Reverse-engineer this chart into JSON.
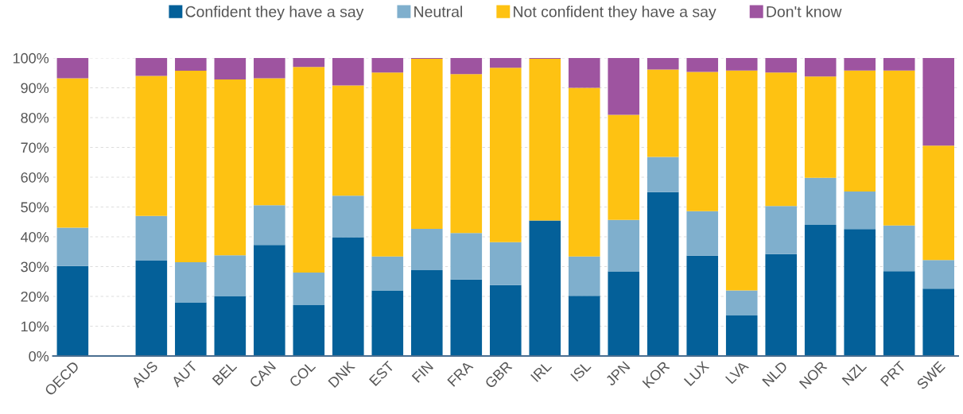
{
  "chart_data": {
    "type": "bar",
    "stacked": true,
    "categories": [
      "OECD",
      null,
      "AUS",
      "AUT",
      "BEL",
      "CAN",
      "COL",
      "DNK",
      "EST",
      "FIN",
      "FRA",
      "GBR",
      "IRL",
      "ISL",
      "JPN",
      "KOR",
      "LUX",
      "LVA",
      "NLD",
      "NOR",
      "NZL",
      "PRT",
      "SWE"
    ],
    "series": [
      {
        "name": "Confident they have a say",
        "color": "#046099",
        "values": [
          30.2,
          null,
          32,
          18,
          20,
          37.3,
          17.1,
          39.9,
          22,
          28.8,
          25.7,
          23.8,
          45.5,
          20.2,
          28.4,
          55,
          33.7,
          13.6,
          34.2,
          44,
          42.6,
          28.5,
          22.6
        ]
      },
      {
        "name": "Neutral",
        "color": "#7fafcd",
        "values": [
          12.9,
          null,
          15,
          13.5,
          13.8,
          13.3,
          10.9,
          13.9,
          11.4,
          13.9,
          15.6,
          14.4,
          0,
          13.2,
          17.3,
          11.8,
          14.9,
          8.4,
          16.1,
          15.8,
          12.6,
          15.3,
          9.6
        ]
      },
      {
        "name": "Not confident they have a say",
        "color": "#fec212",
        "values": [
          50.1,
          null,
          47,
          64.2,
          59,
          42.6,
          69,
          37,
          61.7,
          57,
          53.3,
          58.5,
          54.2,
          56.6,
          35.2,
          29.3,
          46.7,
          73.8,
          44.8,
          34,
          40.6,
          52,
          38.4
        ]
      },
      {
        "name": "Don't know",
        "color": "#9e54a0",
        "values": [
          6.8,
          null,
          6,
          4.3,
          7.2,
          6.8,
          3,
          9.2,
          4.9,
          0.3,
          5.4,
          3.3,
          0.3,
          10,
          19.1,
          3.9,
          4.7,
          4.2,
          4.9,
          6.2,
          4.2,
          4.2,
          29.4
        ]
      }
    ],
    "ylim": [
      0,
      100
    ],
    "yticks": [
      {
        "value": 0,
        "label": "0%"
      },
      {
        "value": 10,
        "label": "10%"
      },
      {
        "value": 20,
        "label": "20%"
      },
      {
        "value": 30,
        "label": "30%"
      },
      {
        "value": 40,
        "label": "40%"
      },
      {
        "value": 50,
        "label": "50%"
      },
      {
        "value": 60,
        "label": "60%"
      },
      {
        "value": 70,
        "label": "70%"
      },
      {
        "value": 80,
        "label": "80%"
      },
      {
        "value": 90,
        "label": "90%"
      },
      {
        "value": 100,
        "label": "100%"
      }
    ],
    "grid": "y",
    "legend": "top"
  }
}
